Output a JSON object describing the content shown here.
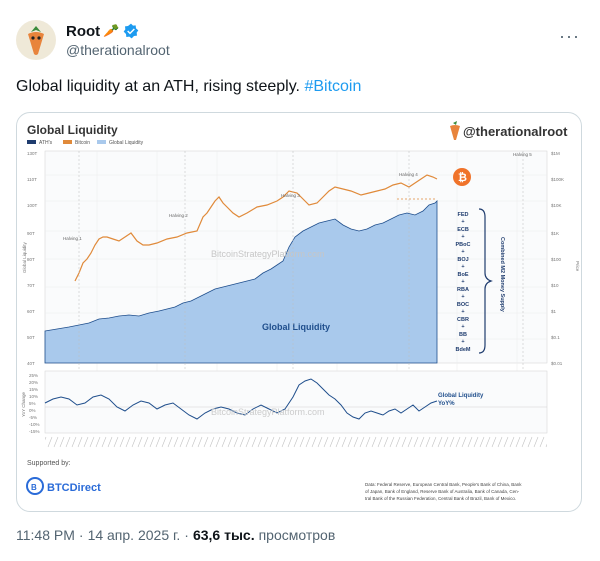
{
  "tweet": {
    "author_name": "Root",
    "author_handle": "@therationalroot",
    "text": "Global liquidity at an ATH, rising steeply.",
    "hashtag": "#Bitcoin",
    "time": "11:48 PM",
    "date": "14 апр. 2025 г.",
    "views": "63,6 тыс.",
    "views_label": "просмотров",
    "more_label": "···"
  },
  "chart": {
    "title": "Global Liquidity",
    "watermark_handle": "@therationalroot",
    "legend": [
      "ATH's",
      "Bitcoin",
      "Global Liquidity"
    ],
    "halvings": [
      "Halving 1",
      "Halving 2",
      "Halving 3",
      "Halving 4",
      "Halving 5"
    ],
    "site_watermark": "BitcoinStrategyPlatform.com",
    "area_label": "Global Liquidity",
    "yoy_label": [
      "Global Liquidity",
      "YoY%"
    ],
    "left_axis_title": "Global Liquidity",
    "left_ticks": [
      "130T",
      "110T",
      "100T",
      "90T",
      "80T",
      "70T",
      "60T",
      "50T",
      "40T"
    ],
    "right_ticks": [
      "$1M",
      "$100K",
      "$10K",
      "$1K",
      "$100",
      "$10",
      "$1",
      "$0.1",
      "$0.01"
    ],
    "right_axis_title": "Price",
    "yoy_axis_title": "YoY Change",
    "yoy_ticks": [
      "25%",
      "20%",
      "15%",
      "10%",
      "5%",
      "0%",
      "-5%",
      "-10%",
      "-15%"
    ],
    "banks": [
      "FED",
      "ECB",
      "PBoC",
      "BOJ",
      "BoE",
      "RBA",
      "BOC",
      "CBR",
      "BB",
      "BdeM"
    ],
    "bracket_label": "Combined M2 Money Supply",
    "supported_by": "Supported by:",
    "sponsor": "BTCDirect",
    "source_text": [
      "Data: Federal Reserve, European Central Bank, People's Bank of China, Bank",
      "of Japan, Bank of England, Reserve Bank of Australia, Bank of Canada, Cen-",
      "tral Bank of the Russian Federation, Central Bank of Brazil, Bank of Mexico."
    ]
  },
  "colors": {
    "liquidity_fill": "#a9c9ec",
    "liquidity_line": "#1f4e8c",
    "bitcoin_line": "#e08a3a",
    "accent": "#1d9bf0"
  }
}
